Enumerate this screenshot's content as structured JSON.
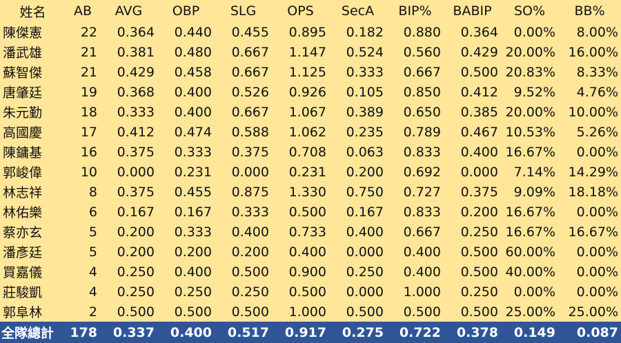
{
  "table": {
    "header": [
      "姓名",
      "AB",
      "AVG",
      "OBP",
      "SLG",
      "OPS",
      "SecA",
      "BIP%",
      "BABIP",
      "SO%",
      "BB%"
    ],
    "rows": [
      [
        "陳傑憲",
        "22",
        "0.364",
        "0.440",
        "0.455",
        "0.895",
        "0.182",
        "0.880",
        "0.364",
        "0.00%",
        "8.00%"
      ],
      [
        "潘武雄",
        "21",
        "0.381",
        "0.480",
        "0.667",
        "1.147",
        "0.524",
        "0.560",
        "0.429",
        "20.00%",
        "16.00%"
      ],
      [
        "蘇智傑",
        "21",
        "0.429",
        "0.458",
        "0.667",
        "1.125",
        "0.333",
        "0.667",
        "0.500",
        "20.83%",
        "8.33%"
      ],
      [
        "唐肇廷",
        "19",
        "0.368",
        "0.400",
        "0.526",
        "0.926",
        "0.105",
        "0.850",
        "0.412",
        "9.52%",
        "4.76%"
      ],
      [
        "朱元勤",
        "18",
        "0.333",
        "0.400",
        "0.667",
        "1.067",
        "0.389",
        "0.650",
        "0.385",
        "20.00%",
        "10.00%"
      ],
      [
        "高國慶",
        "17",
        "0.412",
        "0.474",
        "0.588",
        "1.062",
        "0.235",
        "0.789",
        "0.467",
        "10.53%",
        "5.26%"
      ],
      [
        "陳鏞基",
        "16",
        "0.375",
        "0.333",
        "0.375",
        "0.708",
        "0.063",
        "0.833",
        "0.400",
        "16.67%",
        "0.00%"
      ],
      [
        "郭峻偉",
        "10",
        "0.000",
        "0.231",
        "0.000",
        "0.231",
        "0.200",
        "0.692",
        "0.000",
        "7.14%",
        "14.29%"
      ],
      [
        "林志祥",
        "8",
        "0.375",
        "0.455",
        "0.875",
        "1.330",
        "0.750",
        "0.727",
        "0.375",
        "9.09%",
        "18.18%"
      ],
      [
        "林佑樂",
        "6",
        "0.167",
        "0.167",
        "0.333",
        "0.500",
        "0.167",
        "0.833",
        "0.200",
        "16.67%",
        "0.00%"
      ],
      [
        "蔡亦玄",
        "5",
        "0.200",
        "0.333",
        "0.400",
        "0.733",
        "0.400",
        "0.667",
        "0.250",
        "16.67%",
        "16.67%"
      ],
      [
        "潘彥廷",
        "5",
        "0.200",
        "0.200",
        "0.200",
        "0.400",
        "0.000",
        "0.400",
        "0.500",
        "60.00%",
        "0.00%"
      ],
      [
        "買嘉儀",
        "4",
        "0.250",
        "0.400",
        "0.500",
        "0.900",
        "0.250",
        "0.400",
        "0.500",
        "40.00%",
        "0.00%"
      ],
      [
        "莊駿凱",
        "4",
        "0.250",
        "0.250",
        "0.250",
        "0.500",
        "0.000",
        "1.000",
        "0.250",
        "0.00%",
        "0.00%"
      ],
      [
        "郭阜林",
        "2",
        "0.500",
        "0.500",
        "0.500",
        "1.000",
        "0.500",
        "0.500",
        "0.500",
        "25.00%",
        "25.00%"
      ]
    ],
    "total": [
      "全隊總計",
      "178",
      "0.337",
      "0.400",
      "0.517",
      "0.917",
      "0.275",
      "0.722",
      "0.378",
      "0.149",
      "0.087"
    ]
  }
}
